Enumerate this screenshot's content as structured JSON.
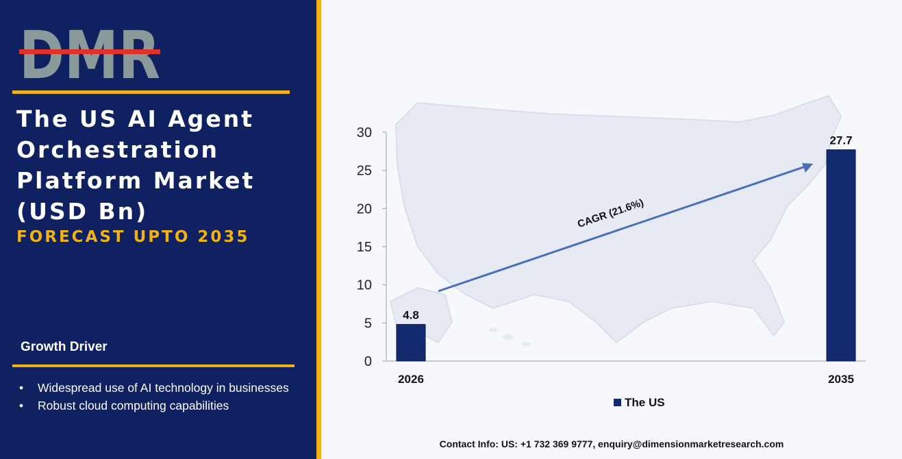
{
  "branding": {
    "logo_text": "DMR"
  },
  "sidebar": {
    "title_lines": [
      "The US AI Agent",
      "Orchestration",
      "Platform Market",
      "(USD Bn)"
    ],
    "subtitle": "FORECAST UPTO 2035",
    "driver_heading": "Growth Driver",
    "drivers": [
      "Widespread use of AI technology in businesses",
      "Robust cloud computing capabilities"
    ]
  },
  "colors": {
    "panel_bg": "#0f2160",
    "accent_gold": "#f0b21a",
    "bar_fill": "#142a6e",
    "arrow": "#4a6fb8",
    "logo_gray": "#8a9a9a",
    "logo_red": "#e0322a"
  },
  "background_icon": "us-map-silhouette",
  "chart_data": {
    "type": "bar",
    "categories": [
      "2026",
      "2035"
    ],
    "series": [
      {
        "name": "The US",
        "values": [
          4.8,
          27.7
        ]
      }
    ],
    "data_labels": [
      "4.8",
      "27.7"
    ],
    "ylim": [
      0,
      30
    ],
    "yticks": [
      0,
      5,
      10,
      15,
      20,
      25,
      30
    ],
    "annotation": "CAGR (21.6%)",
    "legend_position": "bottom",
    "grid": false
  },
  "footer": {
    "contact": "Contact Info: US: +1 732 369 9777, enquiry@dimensionmarketresearch.com"
  }
}
